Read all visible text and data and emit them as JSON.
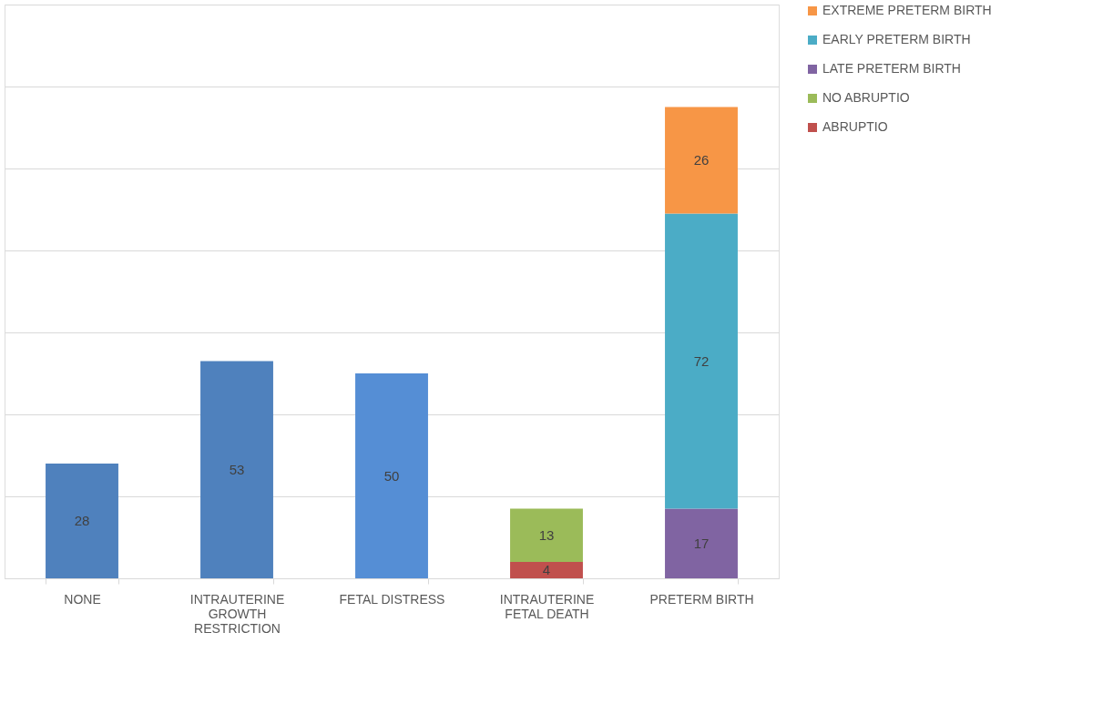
{
  "chart_data": {
    "type": "bar",
    "stacked": true,
    "data_labels": true,
    "grid": "y",
    "legend": "right",
    "tick_labels": "x",
    "categories": [
      "NONE",
      "INTRAUTERINE GROWTH RESTRICTION",
      "FETAL DISTRESS",
      "INTRAUTERINE FETAL DEATH",
      "PRETERM BIRTH"
    ],
    "ylim": [
      0,
      140
    ],
    "yticks": [
      {
        "value": 0,
        "label": null
      },
      {
        "value": 20,
        "label": null
      },
      {
        "value": 40,
        "label": null
      },
      {
        "value": 60,
        "label": null
      },
      {
        "value": 80,
        "label": null
      },
      {
        "value": 100,
        "label": null
      },
      {
        "value": 120,
        "label": null
      },
      {
        "value": 140,
        "label": null
      }
    ],
    "series": [
      {
        "colors": [
          "#4f81bd",
          "#4f81bd",
          "#558ed5",
          null,
          null
        ],
        "values": [
          28,
          53,
          50,
          null,
          null
        ]
      },
      {
        "name": "ABRUPTIO",
        "color": "#c0504d",
        "values": [
          null,
          null,
          null,
          4,
          null
        ]
      },
      {
        "name": "NO ABRUPTIO",
        "color": "#9bbb59",
        "values": [
          null,
          null,
          null,
          13,
          null
        ]
      },
      {
        "name": "LATE PRETERM BIRTH",
        "color": "#8064a2",
        "values": [
          null,
          null,
          null,
          null,
          17
        ]
      },
      {
        "name": "EARLY PRETERM BIRTH",
        "color": "#4bacc6",
        "values": [
          null,
          null,
          null,
          null,
          72
        ]
      },
      {
        "name": "EXTREME PRETERM BIRTH",
        "color": "#f79646",
        "values": [
          null,
          null,
          null,
          null,
          26
        ]
      }
    ]
  }
}
